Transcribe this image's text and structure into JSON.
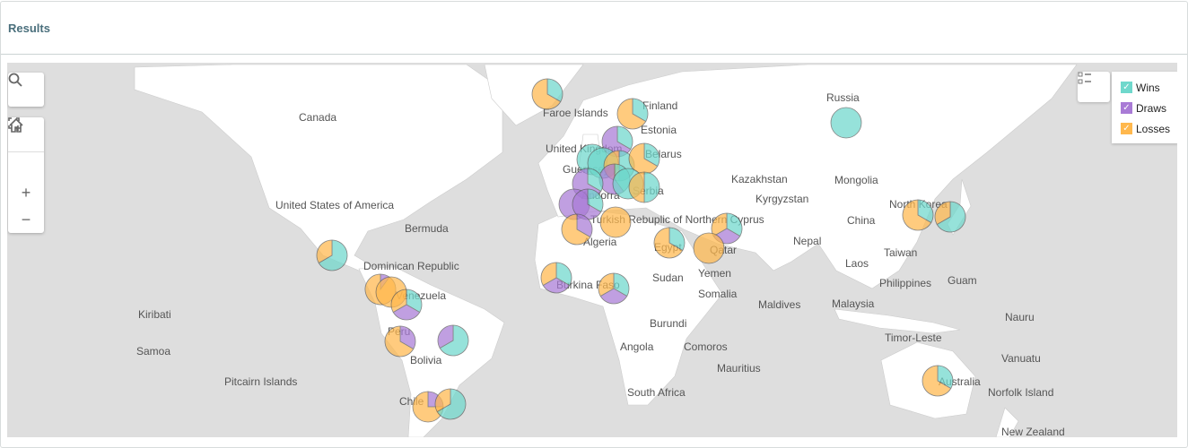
{
  "header": {
    "title": "Results"
  },
  "legend": {
    "items": [
      {
        "label": "Wins",
        "color": "#6fd8cc",
        "checked": true
      },
      {
        "label": "Draws",
        "color": "#a97bd6",
        "checked": true
      },
      {
        "label": "Losses",
        "color": "#ffb84d",
        "checked": true
      }
    ]
  },
  "controls": {
    "search": "search-icon",
    "home": "home-icon",
    "select": "select-region-icon",
    "zoom_in": "zoom-in-icon",
    "zoom_out": "zoom-out-icon",
    "legend_toggle": "legend-list-icon"
  },
  "colors": {
    "ocean": "#dedede",
    "land": "#ffffff"
  },
  "labels": [
    "Canada",
    "Russia",
    "Finland",
    "Faroe Islands",
    "Estonia",
    "United Kingdom",
    "Belarus",
    "Guernsey",
    "Kazakhstan",
    "Mongolia",
    "Kyrgyzstan",
    "Andorra",
    "Serbia",
    "United States of America",
    "North Korea",
    "Turkish Rebuplic of Northern Cyprus",
    "China",
    "Bermuda",
    "Algeria",
    "Nepal",
    "Egypt",
    "Qatar",
    "Taiwan",
    "Dominican Republic",
    "Laos",
    "Yemen",
    "Burkina Faso",
    "Sudan",
    "Philippines",
    "Guam",
    "Venezuela",
    "Somalia",
    "Kiribati",
    "Maldives",
    "Malaysia",
    "Burundi",
    "Nauru",
    "Peru",
    "Timor-Leste",
    "Samoa",
    "Angola",
    "Comoros",
    "Vanuatu",
    "Bolivia",
    "Mauritius",
    "Pitcairn Islands",
    "Australia",
    "South Africa",
    "Norfolk Island",
    "Chile",
    "New Zealand"
  ],
  "pies": [
    {
      "wins": 1,
      "draws": 0,
      "losses": 2
    },
    {
      "wins": 1,
      "draws": 0,
      "losses": 2
    },
    {
      "wins": 1,
      "draws": 0,
      "losses": 0
    },
    {
      "wins": 1,
      "draws": 2,
      "losses": 0
    },
    {
      "wins": 1,
      "draws": 0,
      "losses": 0
    },
    {
      "wins": 1,
      "draws": 0,
      "losses": 0
    },
    {
      "wins": 1,
      "draws": 0,
      "losses": 1
    },
    {
      "wins": 1,
      "draws": 0,
      "losses": 2
    },
    {
      "wins": 2,
      "draws": 3,
      "losses": 0
    },
    {
      "wins": 1,
      "draws": 2,
      "losses": 0
    },
    {
      "wins": 1,
      "draws": 0,
      "losses": 0
    },
    {
      "wins": 1,
      "draws": 0,
      "losses": 1
    },
    {
      "wins": 0,
      "draws": 1,
      "losses": 0
    },
    {
      "wins": 1,
      "draws": 2,
      "losses": 0
    },
    {
      "wins": 0,
      "draws": 1,
      "losses": 2
    },
    {
      "wins": 0,
      "draws": 0,
      "losses": 1
    },
    {
      "wins": 1,
      "draws": 0,
      "losses": 2
    },
    {
      "wins": 1,
      "draws": 1,
      "losses": 1
    },
    {
      "wins": 0,
      "draws": 0,
      "losses": 1
    },
    {
      "wins": 1,
      "draws": 1,
      "losses": 1
    },
    {
      "wins": 1,
      "draws": 1,
      "losses": 1
    },
    {
      "wins": 2,
      "draws": 0,
      "losses": 1
    },
    {
      "wins": 0,
      "draws": 1,
      "losses": 9
    },
    {
      "wins": 0,
      "draws": 0,
      "losses": 1
    },
    {
      "wins": 1,
      "draws": 1,
      "losses": 1
    },
    {
      "wins": 0,
      "draws": 1,
      "losses": 2
    },
    {
      "wins": 2,
      "draws": 1,
      "losses": 0
    },
    {
      "wins": 0,
      "draws": 1,
      "losses": 3
    },
    {
      "wins": 2,
      "draws": 0,
      "losses": 1
    },
    {
      "wins": 1,
      "draws": 0,
      "losses": 2
    },
    {
      "wins": 2,
      "draws": 0,
      "losses": 1
    },
    {
      "wins": 1,
      "draws": 0,
      "losses": 2
    }
  ]
}
